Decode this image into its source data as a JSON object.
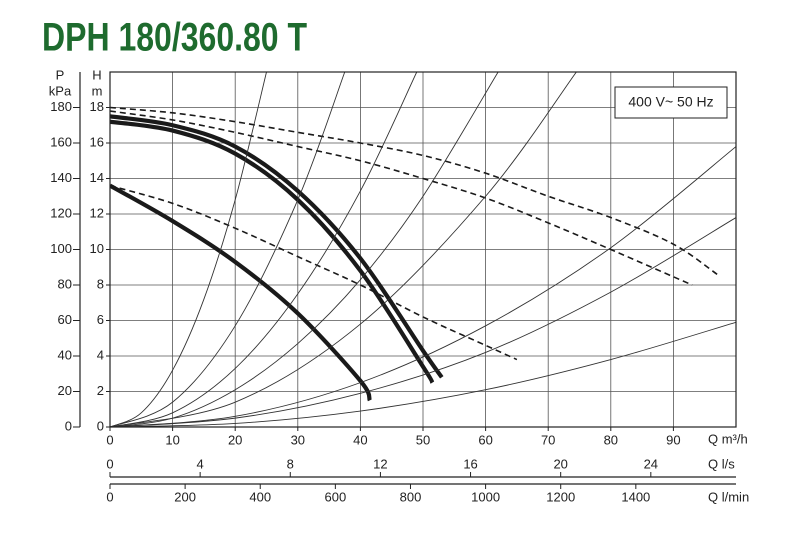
{
  "chart_data": {
    "type": "line",
    "title": "DPH 180/360.80 T",
    "annotation": "400 V~ 50 Hz",
    "xlabel": "Q m³/h",
    "ylabel": "H",
    "yunit": "m",
    "y2label": "P",
    "y2unit": "kPa",
    "xlim": [
      0,
      100
    ],
    "xticks": [
      0,
      10,
      20,
      30,
      40,
      50,
      60,
      70,
      80,
      90
    ],
    "ylim": [
      0,
      20
    ],
    "yticks": [
      0,
      2,
      4,
      6,
      8,
      10,
      12,
      14,
      16,
      18
    ],
    "y2lim": [
      0,
      200
    ],
    "y2ticks": [
      0,
      20,
      40,
      60,
      80,
      100,
      120,
      140,
      160,
      180
    ],
    "grid": true,
    "secondary_x_axes": [
      {
        "label": "Q l/s",
        "xlim": [
          0,
          27.78
        ],
        "xticks": [
          0,
          4,
          8,
          12,
          16,
          20,
          24
        ]
      },
      {
        "label": "Q l/min",
        "xlim": [
          0,
          1666.7
        ],
        "xticks": [
          0,
          200,
          400,
          600,
          800,
          1000,
          1200,
          1400
        ]
      }
    ],
    "series": [
      {
        "style": "thick",
        "color": "#1a1a1a",
        "x": [
          0,
          10,
          20,
          30,
          40,
          50,
          53
        ],
        "values": [
          17.5,
          17.0,
          15.8,
          13.3,
          9.5,
          4.3,
          2.8
        ]
      },
      {
        "style": "thick",
        "color": "#1a1a1a",
        "x": [
          0,
          10,
          20,
          30,
          40,
          50,
          51.5
        ],
        "values": [
          17.2,
          16.7,
          15.4,
          12.8,
          8.8,
          3.4,
          2.5
        ]
      },
      {
        "style": "thick",
        "color": "#1a1a1a",
        "x": [
          0,
          10,
          20,
          30,
          40,
          41.5
        ],
        "values": [
          13.6,
          11.6,
          9.3,
          6.4,
          2.6,
          1.5
        ]
      },
      {
        "style": "dashed",
        "color": "#1a1a1a",
        "x": [
          0,
          10,
          20,
          30,
          40,
          50,
          60,
          70,
          80,
          90,
          97
        ],
        "values": [
          18,
          17.7,
          17.2,
          16.6,
          16.0,
          15.3,
          14.3,
          13.0,
          11.8,
          10.3,
          8.6
        ]
      },
      {
        "style": "dashed",
        "color": "#1a1a1a",
        "x": [
          0,
          10,
          20,
          30,
          40,
          50,
          60,
          70,
          80,
          93
        ],
        "values": [
          17.8,
          17.3,
          16.6,
          15.8,
          15.0,
          14.0,
          12.9,
          11.5,
          10.0,
          8.0
        ]
      },
      {
        "style": "dashed",
        "color": "#1a1a1a",
        "x": [
          0,
          10,
          20,
          30,
          40,
          50,
          60,
          65
        ],
        "values": [
          13.6,
          12.6,
          11.2,
          9.6,
          8.0,
          6.2,
          4.6,
          3.8
        ]
      },
      {
        "style": "thin",
        "color": "#333333",
        "x": [
          0,
          5,
          10,
          15,
          20,
          25
        ],
        "values": [
          0,
          0.8,
          3.2,
          7.2,
          12.8,
          20
        ]
      },
      {
        "style": "thin",
        "color": "#333333",
        "x": [
          0,
          10,
          20,
          30,
          37.5
        ],
        "values": [
          0,
          1.4,
          5.7,
          12.8,
          20
        ]
      },
      {
        "style": "thin",
        "color": "#333333",
        "x": [
          0,
          10,
          20,
          30,
          40,
          49
        ],
        "values": [
          0,
          0.8,
          3.3,
          7.5,
          13.3,
          20
        ]
      },
      {
        "style": "thin",
        "color": "#333333",
        "x": [
          0,
          10,
          20,
          30,
          40,
          50,
          62
        ],
        "values": [
          0,
          0.5,
          2.1,
          4.7,
          8.3,
          13,
          20
        ]
      },
      {
        "style": "thin",
        "color": "#333333",
        "x": [
          0,
          20,
          40,
          60,
          74.5
        ],
        "values": [
          0,
          1.4,
          5.8,
          13,
          20
        ]
      },
      {
        "style": "thin",
        "color": "#333333",
        "x": [
          0,
          20,
          40,
          60,
          80,
          100
        ],
        "values": [
          0,
          0.6,
          2.5,
          5.7,
          10.1,
          15.8
        ]
      },
      {
        "style": "thin",
        "color": "#333333",
        "x": [
          0,
          20,
          40,
          60,
          80,
          100
        ],
        "values": [
          0,
          0.5,
          1.9,
          4.2,
          7.6,
          11.8
        ]
      },
      {
        "style": "thin",
        "color": "#333333",
        "x": [
          0,
          20,
          40,
          60,
          80,
          100
        ],
        "values": [
          0,
          0.2,
          0.9,
          2.1,
          3.8,
          5.9
        ]
      }
    ]
  }
}
